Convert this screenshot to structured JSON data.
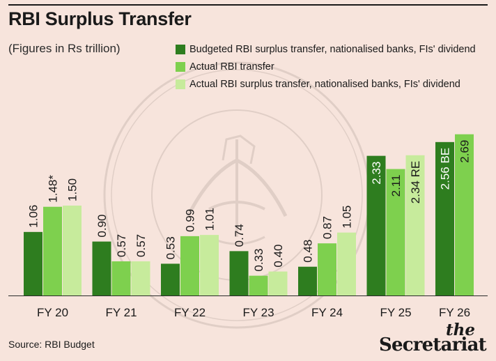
{
  "header": {
    "title": "RBI Surplus Transfer",
    "subtitle": "(Figures in Rs trillion)"
  },
  "footer": {
    "source": "Source: RBI Budget",
    "brand_the": "the",
    "brand_name": "Secretariat"
  },
  "colors": {
    "background": "#f7e4dc",
    "budgeted": "#2e7d1f",
    "actual": "#7ed04e",
    "actual_surplus": "#c7eb9c",
    "watermark": "#cbbab2"
  },
  "watermark_icon": "rbi-seal-watermark",
  "chart_data": {
    "type": "bar",
    "title": "RBI Surplus Transfer",
    "subtitle": "(Figures in Rs trillion)",
    "xlabel": "",
    "ylabel": "",
    "ylim": [
      0,
      3.2
    ],
    "grid": false,
    "legend_position": "top-right",
    "categories": [
      "FY 20",
      "FY 21",
      "FY 22",
      "FY 23",
      "FY 24",
      "FY 25",
      "FY 26"
    ],
    "series": [
      {
        "name": "Budgeted RBI surplus transfer, nationalised banks, FIs' dividend",
        "color": "#2e7d1f",
        "values": [
          1.06,
          0.9,
          0.53,
          0.74,
          0.48,
          2.33,
          2.56
        ],
        "labels": [
          "1.06",
          "0.90",
          "0.53",
          "0.74",
          "0.48",
          "2.33",
          "2.56 BE"
        ]
      },
      {
        "name": "Actual RBI transfer",
        "color": "#7ed04e",
        "values": [
          1.48,
          0.57,
          0.99,
          0.33,
          0.87,
          2.11,
          2.69
        ],
        "labels": [
          "1.48*",
          "0.57",
          "0.99",
          "0.33",
          "0.87",
          "2.11",
          "2.69"
        ]
      },
      {
        "name": "Actual RBI surplus transfer, nationalised banks, FIs' dividend",
        "color": "#c7eb9c",
        "values": [
          1.5,
          0.57,
          1.01,
          0.4,
          1.05,
          2.34,
          null
        ],
        "labels": [
          "1.50",
          "0.57",
          "1.01",
          "0.40",
          "1.05",
          "2.34 RE",
          null
        ]
      }
    ]
  }
}
